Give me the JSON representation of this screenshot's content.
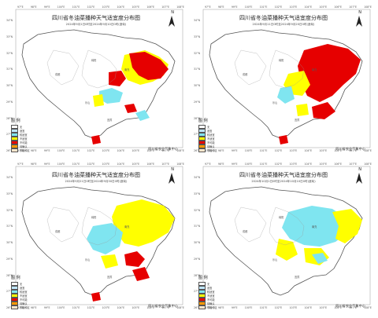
{
  "colors": {
    "red": "#e60000",
    "yellow": "#ffff00",
    "cyan": "#7fe5f0",
    "orange": "#ff9900",
    "lightblue": "#bfe6ff",
    "outline": "#555555"
  },
  "panels": [
    {
      "title": "四川省冬油菜播种天气适宜度分布图",
      "subtitle": "2024年9月1日0时至2024年9月10日0时(逐旬)",
      "north": "N",
      "credit": "四川省农业气象中心",
      "legend_title": "图 例",
      "legend_items": [
        "无",
        "适宜",
        "较适宜",
        "不适宜",
        "不可能",
        "待确认",
        "非播种区"
      ],
      "lon_ticks": [
        "97°E",
        "98°E",
        "99°E",
        "100°E",
        "101°E",
        "102°E",
        "103°E",
        "104°E",
        "105°E",
        "106°E",
        "107°E",
        "108°E"
      ],
      "lat_ticks": [
        "34°N",
        "33°N",
        "32°N",
        "31°N",
        "30°N",
        "29°N",
        "28°N",
        "27°N",
        "26°N"
      ],
      "map_labels": [
        "成都",
        "绵阳",
        "南充",
        "乐山",
        "宜宾"
      ]
    },
    {
      "title": "四川省冬油菜播种天气适宜度分布图",
      "subtitle": "2024年9月11日0时至2024年9月20日0时(逐旬)",
      "north": "N",
      "credit": "四川省农业气象中心",
      "legend_title": "图 例",
      "legend_items": [
        "无",
        "适宜",
        "较适宜",
        "不适宜",
        "不可能",
        "待确认",
        "非播种区"
      ],
      "lon_ticks": [
        "97°E",
        "98°E",
        "99°E",
        "100°E",
        "101°E",
        "102°E",
        "103°E",
        "104°E",
        "105°E",
        "106°E",
        "107°E",
        "108°E"
      ],
      "lat_ticks": [
        "34°N",
        "33°N",
        "32°N",
        "31°N",
        "30°N",
        "29°N",
        "28°N",
        "27°N",
        "26°N"
      ],
      "map_labels": [
        "成都",
        "绵阳",
        "南充",
        "乐山",
        "宜宾"
      ]
    },
    {
      "title": "四川省冬油菜播种天气适宜度分布图",
      "subtitle": "2024年9月21日0时至2024年9月30日0时(逐旬)",
      "north": "N",
      "credit": "四川省农业气象中心",
      "legend_title": "图 例",
      "legend_items": [
        "无",
        "适宜",
        "较适宜",
        "不适宜",
        "不可能",
        "待确认",
        "非播种区"
      ],
      "lon_ticks": [
        "97°E",
        "98°E",
        "99°E",
        "100°E",
        "101°E",
        "102°E",
        "103°E",
        "104°E",
        "105°E",
        "106°E",
        "107°E",
        "108°E"
      ],
      "lat_ticks": [
        "34°N",
        "33°N",
        "32°N",
        "31°N",
        "30°N",
        "29°N",
        "28°N",
        "27°N",
        "26°N"
      ],
      "map_labels": [
        "成都",
        "绵阳",
        "南充",
        "乐山",
        "宜宾"
      ]
    },
    {
      "title": "四川省冬油菜播种天气适宜度分布图",
      "subtitle": "2024年10月1日0时至2024年10月10日0时(逐旬)",
      "north": "N",
      "credit": "四川省农业气象中心",
      "legend_title": "图 例",
      "legend_items": [
        "无",
        "适宜",
        "较适宜",
        "不适宜",
        "不可能",
        "待确认",
        "非播种区"
      ],
      "lon_ticks": [
        "97°E",
        "98°E",
        "99°E",
        "100°E",
        "101°E",
        "102°E",
        "103°E",
        "104°E",
        "105°E",
        "106°E",
        "107°E",
        "108°E"
      ],
      "lat_ticks": [
        "34°N",
        "33°N",
        "32°N",
        "31°N",
        "30°N",
        "29°N",
        "28°N",
        "27°N",
        "26°N"
      ],
      "map_labels": [
        "成都",
        "绵阳",
        "南充",
        "乐山",
        "宜宾"
      ]
    }
  ]
}
